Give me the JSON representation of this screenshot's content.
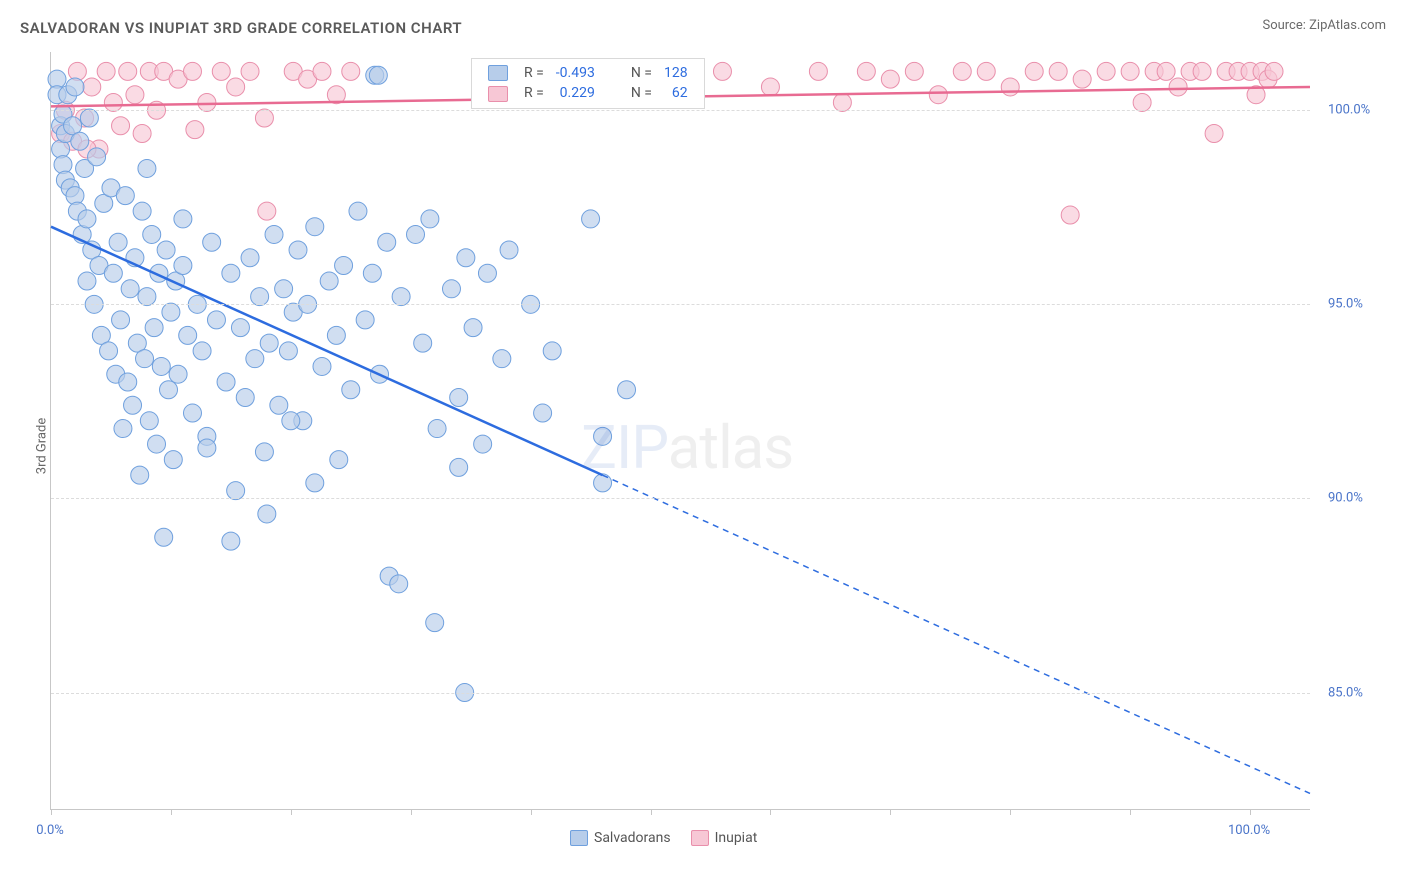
{
  "header": {
    "title": "SALVADORAN VS INUPIAT 3RD GRADE CORRELATION CHART",
    "source": "Source: ZipAtlas.com"
  },
  "axes": {
    "y_label": "3rd Grade",
    "x_min": 0,
    "x_max": 105,
    "y_min": 82,
    "y_max": 101.5,
    "y_ticks": [
      85.0,
      90.0,
      95.0,
      100.0
    ],
    "y_tick_labels": [
      "85.0%",
      "90.0%",
      "95.0%",
      "100.0%"
    ],
    "x_ticks": [
      0,
      10,
      20,
      30,
      40,
      50,
      60,
      70,
      80,
      90,
      100
    ],
    "x_min_label": "0.0%",
    "x_max_label": "100.0%"
  },
  "colors": {
    "blue_fill": "#b7cdea",
    "blue_stroke": "#6fa0de",
    "blue_line": "#2d6cdf",
    "pink_fill": "#f7c7d5",
    "pink_stroke": "#e98fab",
    "pink_line": "#e86b92",
    "grid": "#dcdcdc",
    "axis": "#c7c7c7",
    "tick_text": "#4a74c9"
  },
  "marker_radius": 9,
  "legend_top": {
    "rows": [
      {
        "sw_fill": "#b7cdea",
        "sw_stroke": "#6fa0de",
        "r_label": "R =",
        "r_value": "-0.493",
        "n_label": "N =",
        "n_value": "128"
      },
      {
        "sw_fill": "#f7c7d5",
        "sw_stroke": "#e98fab",
        "r_label": "R =",
        "r_value": "0.229",
        "n_label": "N =",
        "n_value": "62"
      }
    ]
  },
  "legend_bottom": {
    "items": [
      {
        "sw_fill": "#b7cdea",
        "sw_stroke": "#6fa0de",
        "label": "Salvadorans"
      },
      {
        "sw_fill": "#f7c7d5",
        "sw_stroke": "#e98fab",
        "label": "Inupiat"
      }
    ]
  },
  "watermark": {
    "part1": "ZIP",
    "part2": "atlas"
  },
  "series": {
    "salvadorans": {
      "trend": {
        "x1": 0,
        "y1": 97.0,
        "x2": 46,
        "y2": 90.6,
        "x_dash_end": 105,
        "y_dash_end": 82.4
      },
      "points": [
        [
          0.5,
          100.8
        ],
        [
          0.5,
          100.4
        ],
        [
          0.8,
          99.6
        ],
        [
          0.8,
          99.0
        ],
        [
          1.0,
          99.9
        ],
        [
          1.0,
          98.6
        ],
        [
          1.2,
          98.2
        ],
        [
          1.2,
          99.4
        ],
        [
          1.4,
          100.4
        ],
        [
          1.6,
          98.0
        ],
        [
          1.8,
          99.6
        ],
        [
          2.0,
          97.8
        ],
        [
          2.0,
          100.6
        ],
        [
          2.2,
          97.4
        ],
        [
          2.4,
          99.2
        ],
        [
          2.6,
          96.8
        ],
        [
          2.8,
          98.5
        ],
        [
          3.0,
          97.2
        ],
        [
          3.2,
          99.8
        ],
        [
          3.4,
          96.4
        ],
        [
          3.6,
          95.0
        ],
        [
          3.8,
          98.8
        ],
        [
          4.0,
          96.0
        ],
        [
          4.2,
          94.2
        ],
        [
          4.4,
          97.6
        ],
        [
          3.0,
          95.6
        ],
        [
          4.8,
          93.8
        ],
        [
          5.0,
          98.0
        ],
        [
          5.2,
          95.8
        ],
        [
          5.4,
          93.2
        ],
        [
          5.6,
          96.6
        ],
        [
          5.8,
          94.6
        ],
        [
          6.0,
          91.8
        ],
        [
          6.2,
          97.8
        ],
        [
          6.4,
          93.0
        ],
        [
          6.6,
          95.4
        ],
        [
          6.8,
          92.4
        ],
        [
          7.0,
          96.2
        ],
        [
          7.2,
          94.0
        ],
        [
          7.4,
          90.6
        ],
        [
          7.6,
          97.4
        ],
        [
          7.8,
          93.6
        ],
        [
          8.0,
          95.2
        ],
        [
          8.2,
          92.0
        ],
        [
          8.4,
          96.8
        ],
        [
          8.6,
          94.4
        ],
        [
          8.8,
          91.4
        ],
        [
          9.0,
          95.8
        ],
        [
          9.2,
          93.4
        ],
        [
          9.4,
          89.0
        ],
        [
          9.6,
          96.4
        ],
        [
          9.8,
          92.8
        ],
        [
          10.0,
          94.8
        ],
        [
          10.2,
          91.0
        ],
        [
          10.4,
          95.6
        ],
        [
          10.6,
          93.2
        ],
        [
          11.0,
          96.0
        ],
        [
          11.4,
          94.2
        ],
        [
          11.8,
          92.2
        ],
        [
          12.2,
          95.0
        ],
        [
          12.6,
          93.8
        ],
        [
          13.0,
          91.6
        ],
        [
          13.4,
          96.6
        ],
        [
          13.8,
          94.6
        ],
        [
          11.0,
          97.2
        ],
        [
          14.6,
          93.0
        ],
        [
          15.0,
          95.8
        ],
        [
          15.4,
          90.2
        ],
        [
          15.8,
          94.4
        ],
        [
          16.2,
          92.6
        ],
        [
          16.6,
          96.2
        ],
        [
          17.0,
          93.6
        ],
        [
          17.4,
          95.2
        ],
        [
          17.8,
          91.2
        ],
        [
          18.2,
          94.0
        ],
        [
          18.6,
          96.8
        ],
        [
          19.0,
          92.4
        ],
        [
          19.4,
          95.4
        ],
        [
          19.8,
          93.8
        ],
        [
          20.2,
          94.8
        ],
        [
          20.6,
          96.4
        ],
        [
          21.0,
          92.0
        ],
        [
          21.4,
          95.0
        ],
        [
          22.0,
          97.0
        ],
        [
          22.6,
          93.4
        ],
        [
          23.2,
          95.6
        ],
        [
          23.8,
          94.2
        ],
        [
          24.4,
          96.0
        ],
        [
          25.0,
          92.8
        ],
        [
          25.6,
          97.4
        ],
        [
          26.2,
          94.6
        ],
        [
          26.8,
          95.8
        ],
        [
          27.4,
          93.2
        ],
        [
          28.0,
          96.6
        ],
        [
          22.0,
          90.4
        ],
        [
          29.2,
          95.2
        ],
        [
          27.0,
          100.9
        ],
        [
          27.3,
          100.9
        ],
        [
          30.4,
          96.8
        ],
        [
          31.0,
          94.0
        ],
        [
          31.6,
          97.2
        ],
        [
          32.2,
          91.8
        ],
        [
          28.2,
          88.0
        ],
        [
          33.4,
          95.4
        ],
        [
          34.0,
          92.6
        ],
        [
          34.6,
          96.2
        ],
        [
          35.2,
          94.4
        ],
        [
          29.0,
          87.8
        ],
        [
          36.4,
          95.8
        ],
        [
          36.0,
          91.4
        ],
        [
          37.6,
          93.6
        ],
        [
          38.2,
          96.4
        ],
        [
          34.0,
          90.8
        ],
        [
          41.0,
          92.2
        ],
        [
          40.0,
          95.0
        ],
        [
          41.8,
          93.8
        ],
        [
          32.0,
          86.8
        ],
        [
          45.0,
          97.2
        ],
        [
          46.0,
          91.6
        ],
        [
          46.0,
          90.4
        ],
        [
          34.5,
          85.0
        ],
        [
          48.0,
          92.8
        ],
        [
          15.0,
          88.9
        ],
        [
          8.0,
          98.5
        ],
        [
          13.0,
          91.3
        ],
        [
          18.0,
          89.6
        ],
        [
          20.0,
          92.0
        ],
        [
          24.0,
          91.0
        ]
      ]
    },
    "inupiat": {
      "trend": {
        "x1": 0,
        "y1": 100.1,
        "x2": 105,
        "y2": 100.6
      },
      "points": [
        [
          0.8,
          99.4
        ],
        [
          1.2,
          100.0
        ],
        [
          1.8,
          99.2
        ],
        [
          2.2,
          101.0
        ],
        [
          2.8,
          99.8
        ],
        [
          3.4,
          100.6
        ],
        [
          4.0,
          99.0
        ],
        [
          4.6,
          101.0
        ],
        [
          5.2,
          100.2
        ],
        [
          5.8,
          99.6
        ],
        [
          6.4,
          101.0
        ],
        [
          7.0,
          100.4
        ],
        [
          7.6,
          99.4
        ],
        [
          8.2,
          101.0
        ],
        [
          8.8,
          100.0
        ],
        [
          9.4,
          101.0
        ],
        [
          3.0,
          99.0
        ],
        [
          10.6,
          100.8
        ],
        [
          12.0,
          99.5
        ],
        [
          11.8,
          101.0
        ],
        [
          13.0,
          100.2
        ],
        [
          14.2,
          101.0
        ],
        [
          15.4,
          100.6
        ],
        [
          16.6,
          101.0
        ],
        [
          17.8,
          99.8
        ],
        [
          18.0,
          97.4
        ],
        [
          20.2,
          101.0
        ],
        [
          21.4,
          100.8
        ],
        [
          22.6,
          101.0
        ],
        [
          23.8,
          100.4
        ],
        [
          25.0,
          101.0
        ],
        [
          56.0,
          101.0
        ],
        [
          60.0,
          100.6
        ],
        [
          64.0,
          101.0
        ],
        [
          66.0,
          100.2
        ],
        [
          68.0,
          101.0
        ],
        [
          70.0,
          100.8
        ],
        [
          72.0,
          101.0
        ],
        [
          74.0,
          100.4
        ],
        [
          76.0,
          101.0
        ],
        [
          78.0,
          101.0
        ],
        [
          80.0,
          100.6
        ],
        [
          82.0,
          101.0
        ],
        [
          84.0,
          101.0
        ],
        [
          85.0,
          97.3
        ],
        [
          86.0,
          100.8
        ],
        [
          88.0,
          101.0
        ],
        [
          90.0,
          101.0
        ],
        [
          91.0,
          100.2
        ],
        [
          92.0,
          101.0
        ],
        [
          93.0,
          101.0
        ],
        [
          94.0,
          100.6
        ],
        [
          95.0,
          101.0
        ],
        [
          96.0,
          101.0
        ],
        [
          97.0,
          99.4
        ],
        [
          98.0,
          101.0
        ],
        [
          99.0,
          101.0
        ],
        [
          100.0,
          101.0
        ],
        [
          100.5,
          100.4
        ],
        [
          101.0,
          101.0
        ],
        [
          101.5,
          100.8
        ],
        [
          102.0,
          101.0
        ]
      ]
    }
  }
}
